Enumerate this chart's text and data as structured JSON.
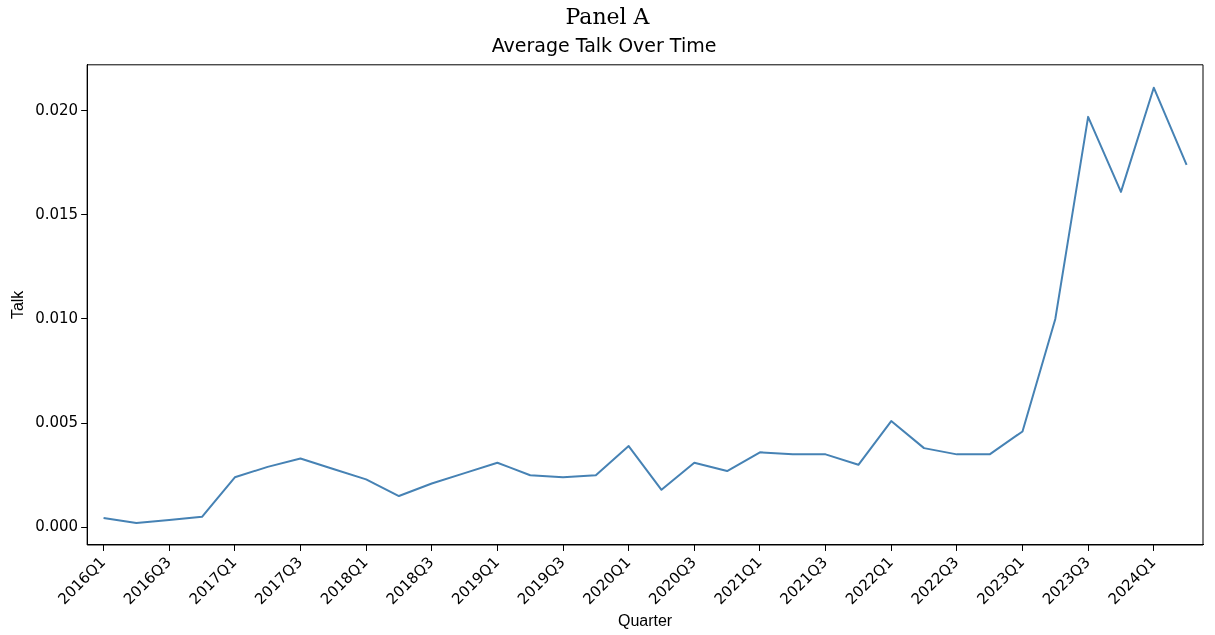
{
  "chart_data": {
    "type": "line",
    "title": "Panel A",
    "subtitle": "Average Talk Over Time",
    "xlabel": "Quarter",
    "ylabel": "Talk",
    "categories": [
      "2016Q1",
      null,
      "2016Q3",
      null,
      "2017Q1",
      null,
      "2017Q3",
      null,
      "2018Q1",
      null,
      "2018Q3",
      null,
      "2019Q1",
      null,
      "2019Q3",
      null,
      "2020Q1",
      null,
      "2020Q3",
      null,
      "2021Q1",
      null,
      "2021Q3",
      null,
      "2022Q1",
      null,
      "2022Q3",
      null,
      "2023Q1",
      null,
      "2023Q3",
      null,
      "2024Q1",
      null
    ],
    "series": [
      {
        "color": "#4682b4",
        "values": [
          0.00045,
          0.0002,
          0.00035,
          0.0005,
          0.0024,
          0.0029,
          0.0033,
          0.0028,
          0.0023,
          0.0015,
          0.0021,
          0.0026,
          0.0031,
          0.0025,
          0.0024,
          0.0025,
          0.0039,
          0.0018,
          0.0031,
          0.0027,
          0.0036,
          0.0035,
          0.0035,
          0.003,
          0.0051,
          0.0038,
          0.0035,
          0.0035,
          0.0046,
          0.01,
          0.0197,
          0.0161,
          0.0211,
          0.0174
        ]
      }
    ],
    "ylim": [
      -0.00085,
      0.0222
    ],
    "yticks": [
      {
        "value": 0,
        "label": "0.000"
      },
      {
        "value": 0.005,
        "label": "0.005"
      },
      {
        "value": 0.01,
        "label": "0.010"
      },
      {
        "value": 0.015,
        "label": "0.015"
      },
      {
        "value": 0.02,
        "label": "0.020"
      }
    ],
    "grid": false,
    "legend": false,
    "marker": "none",
    "line_style": "solid"
  }
}
